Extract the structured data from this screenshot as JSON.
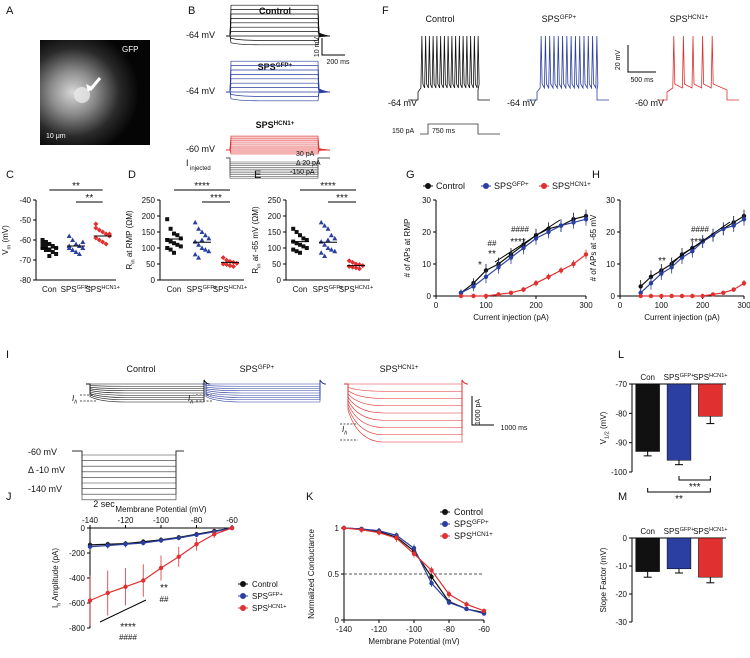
{
  "panels": {
    "A": {
      "letter": "A",
      "gfp": "GFP",
      "scale": "10 μm"
    },
    "B": {
      "letter": "B",
      "rows": [
        {
          "title": "Control",
          "sup": "",
          "v": "-64 mV",
          "color": "#111111"
        },
        {
          "title": "SPS",
          "sup": "GFP+",
          "v": "-64 mV",
          "color": "#2b3fa0"
        },
        {
          "title": "SPS",
          "sup": "HCN1+",
          "v": "-60 mV",
          "color": "#e03030"
        }
      ],
      "scale_y": "10 mV",
      "scale_x": "200 ms",
      "inj": {
        "label": "I",
        "sub": "injected",
        "top": "30 pA",
        "step": "Δ 20 pA",
        "bottom": "-150 pA"
      }
    },
    "F": {
      "letter": "F",
      "rows": [
        {
          "title": "Control",
          "sup": "",
          "v": "-64 mV",
          "color": "#111111"
        },
        {
          "title": "SPS",
          "sup": "GFP+",
          "v": "-64 mV",
          "color": "#2b3fa0"
        },
        {
          "title": "SPS",
          "sup": "HCN1+",
          "v": "-60 mV",
          "color": "#e03030"
        }
      ],
      "scale_y": "20 mV",
      "scale_x": "500 ms",
      "step_amp": "150 pA",
      "step_dur": "750 ms"
    },
    "C": {
      "letter": "C"
    },
    "D": {
      "letter": "D"
    },
    "E": {
      "letter": "E"
    },
    "G": {
      "letter": "G"
    },
    "H": {
      "letter": "H"
    },
    "I": {
      "letter": "I",
      "rows": [
        {
          "title": "Control",
          "sup": ""
        },
        {
          "title": "SPS",
          "sup": "GFP+"
        },
        {
          "title": "SPS",
          "sup": "HCN1+"
        }
      ],
      "ih": "I",
      "ih_sub": "h",
      "volt_top": "-60 mV",
      "volt_step": "Δ -10 mV",
      "volt_bottom": "-140 mV",
      "dur": "2 sec",
      "scale_y": "1000 pA",
      "scale_x": "1000 ms"
    },
    "J": {
      "letter": "J"
    },
    "K": {
      "letter": "K"
    },
    "L": {
      "letter": "L"
    },
    "M": {
      "letter": "M"
    }
  },
  "colors": {
    "control": "#111111",
    "gfp": "#2b3fa0",
    "hcn": "#e03030"
  },
  "chart_data": [
    {
      "id": "C",
      "type": "scatter",
      "ylabel": "V_m (mV)",
      "ylim": [
        -80,
        -40
      ],
      "yticks": [
        -80,
        -70,
        -60,
        -50,
        -40
      ],
      "categories": [
        "Con",
        "SPS^GFP+",
        "SPS^HCN1+"
      ],
      "means": [
        -64,
        -63,
        -58
      ],
      "points": [
        [
          -60,
          -61,
          -62,
          -63,
          -64,
          -64,
          -65,
          -65,
          -66,
          -67,
          -62,
          -63,
          -68
        ],
        [
          -58,
          -60,
          -62,
          -63,
          -64,
          -64,
          -65,
          -66,
          -67,
          -61,
          -63,
          -65
        ],
        [
          -52,
          -55,
          -56,
          -57,
          -58,
          -59,
          -60,
          -61,
          -62,
          -57,
          -54
        ]
      ],
      "sig": [
        {
          "a": 0,
          "b": 2,
          "label": "**"
        },
        {
          "a": 1,
          "b": 2,
          "label": "**"
        }
      ]
    },
    {
      "id": "D",
      "type": "scatter",
      "ylabel": "R_in at RMP (ΩM)",
      "ylim": [
        0,
        250
      ],
      "yticks": [
        0,
        50,
        100,
        150,
        200,
        250
      ],
      "categories": [
        "Con",
        "SPS^GFP+",
        "SPS^HCN1+"
      ],
      "means": [
        128,
        118,
        55
      ],
      "points": [
        [
          190,
          160,
          145,
          140,
          130,
          125,
          120,
          115,
          110,
          105,
          100,
          95,
          85
        ],
        [
          180,
          160,
          150,
          140,
          130,
          120,
          110,
          100,
          95,
          90,
          80,
          70,
          125
        ],
        [
          70,
          62,
          58,
          55,
          52,
          50,
          48,
          45,
          42
        ]
      ],
      "sig": [
        {
          "a": 0,
          "b": 2,
          "label": "****"
        },
        {
          "a": 1,
          "b": 2,
          "label": "***"
        }
      ]
    },
    {
      "id": "E",
      "type": "scatter",
      "ylabel": "R_in at -65 mV (ΩM)",
      "ylim": [
        0,
        250
      ],
      "yticks": [
        0,
        50,
        100,
        150,
        200,
        250
      ],
      "categories": [
        "Con",
        "SPS^GFP+",
        "SPS^HCN1+"
      ],
      "means": [
        120,
        118,
        45
      ],
      "points": [
        [
          160,
          150,
          140,
          130,
          125,
          120,
          115,
          110,
          105,
          100,
          95,
          90,
          85
        ],
        [
          180,
          170,
          160,
          140,
          130,
          120,
          110,
          100,
          95,
          90,
          85,
          75,
          125
        ],
        [
          60,
          55,
          50,
          48,
          45,
          42,
          40,
          38,
          35
        ]
      ],
      "sig": [
        {
          "a": 0,
          "b": 2,
          "label": "****"
        },
        {
          "a": 1,
          "b": 2,
          "label": "***"
        }
      ]
    },
    {
      "id": "G",
      "type": "line",
      "xlabel": "Current injection (pA)",
      "ylabel": "# of APs at RMP",
      "xlim": [
        0,
        300
      ],
      "ylim": [
        0,
        30
      ],
      "xticks": [
        0,
        100,
        200,
        300
      ],
      "yticks": [
        0,
        10,
        20,
        30
      ],
      "legend": [
        "Control",
        "SPS^GFP+",
        "SPS^HCN1+"
      ],
      "series": [
        {
          "name": "Control",
          "x": [
            50,
            75,
            100,
            125,
            150,
            175,
            200,
            225,
            250,
            275,
            300
          ],
          "y": [
            1,
            4,
            8,
            10,
            13,
            16,
            19,
            21,
            22,
            24,
            25
          ],
          "err": [
            1,
            1.5,
            2,
            2,
            2,
            2,
            2,
            2,
            2,
            2,
            2
          ]
        },
        {
          "name": "SPS^GFP+",
          "x": [
            50,
            75,
            100,
            125,
            150,
            175,
            200,
            225,
            250,
            275,
            300
          ],
          "y": [
            1,
            3,
            6,
            9,
            12,
            15,
            18,
            20,
            22,
            23,
            24
          ],
          "err": [
            1,
            1.5,
            2,
            2,
            2,
            2,
            2,
            2,
            2,
            2,
            2
          ]
        },
        {
          "name": "SPS^HCN1+",
          "x": [
            50,
            75,
            100,
            125,
            150,
            175,
            200,
            225,
            250,
            275,
            300
          ],
          "y": [
            0,
            0,
            0,
            0.5,
            1,
            2,
            4,
            6,
            8,
            10,
            13
          ],
          "err": [
            0,
            0,
            0,
            0.3,
            0.5,
            0.8,
            1,
            1,
            1,
            1.2,
            1.5
          ]
        }
      ],
      "annotations": [
        "*",
        "**",
        "##",
        "####",
        "****"
      ]
    },
    {
      "id": "H",
      "type": "line",
      "xlabel": "Current injection (pA)",
      "ylabel": "# of APs at -65 mV",
      "xlim": [
        0,
        300
      ],
      "ylim": [
        0,
        30
      ],
      "xticks": [
        0,
        100,
        200,
        300
      ],
      "yticks": [
        0,
        10,
        20,
        30
      ],
      "series": [
        {
          "name": "Control",
          "x": [
            50,
            75,
            100,
            125,
            150,
            175,
            200,
            225,
            250,
            275,
            300
          ],
          "y": [
            3,
            6,
            8,
            10,
            13,
            15,
            17,
            19,
            21,
            23,
            25
          ],
          "err": [
            2,
            2,
            2,
            2,
            2,
            2,
            2,
            2,
            2,
            2,
            2
          ]
        },
        {
          "name": "SPS^GFP+",
          "x": [
            50,
            75,
            100,
            125,
            150,
            175,
            200,
            225,
            250,
            275,
            300
          ],
          "y": [
            1,
            4,
            7,
            9,
            12,
            14,
            17,
            19,
            21,
            22,
            24
          ],
          "err": [
            1.5,
            2,
            2,
            2,
            2,
            2,
            2,
            2,
            2,
            2,
            2
          ]
        },
        {
          "name": "SPS^HCN1+",
          "x": [
            50,
            75,
            100,
            125,
            150,
            175,
            200,
            225,
            250,
            275,
            300
          ],
          "y": [
            0,
            0,
            0,
            0,
            0,
            0,
            0,
            0.5,
            1,
            2,
            4
          ],
          "err": [
            0,
            0,
            0,
            0,
            0,
            0,
            0,
            0.3,
            0.5,
            0.7,
            1
          ]
        }
      ],
      "annotations": [
        "**",
        "####",
        "****"
      ]
    },
    {
      "id": "J",
      "type": "line",
      "xlabel": "Membrane Potential (mV)",
      "ylabel": "I_h Amplitude (pA)",
      "xlim": [
        -140,
        -60
      ],
      "ylim": [
        -800,
        0
      ],
      "xticks": [
        -140,
        -120,
        -100,
        -80,
        -60
      ],
      "yticks": [
        -800,
        -600,
        -400,
        -200,
        0
      ],
      "legend": [
        "Control",
        "SPS^GFP+",
        "SPS^HCN1+"
      ],
      "series": [
        {
          "name": "Control",
          "x": [
            -140,
            -130,
            -120,
            -110,
            -100,
            -90,
            -80,
            -70,
            -60
          ],
          "y": [
            -135,
            -130,
            -125,
            -110,
            -95,
            -75,
            -50,
            -25,
            0
          ],
          "err": [
            20,
            20,
            20,
            20,
            20,
            15,
            10,
            8,
            5
          ]
        },
        {
          "name": "SPS^GFP+",
          "x": [
            -140,
            -130,
            -120,
            -110,
            -100,
            -90,
            -80,
            -70,
            -60
          ],
          "y": [
            -150,
            -140,
            -130,
            -120,
            -100,
            -80,
            -55,
            -30,
            0
          ],
          "err": [
            25,
            25,
            25,
            20,
            20,
            15,
            10,
            8,
            5
          ]
        },
        {
          "name": "SPS^HCN1+",
          "x": [
            -140,
            -130,
            -120,
            -110,
            -100,
            -90,
            -80,
            -70,
            -60
          ],
          "y": [
            -580,
            -520,
            -470,
            -420,
            -320,
            -230,
            -130,
            -50,
            0
          ],
          "err": [
            200,
            180,
            150,
            130,
            100,
            80,
            50,
            30,
            10
          ]
        }
      ],
      "annotations": [
        "**",
        "##",
        "****",
        "####"
      ]
    },
    {
      "id": "K",
      "type": "line",
      "xlabel": "Membrane Potential (mV)",
      "ylabel": "Normalized Conductance",
      "xlim": [
        -140,
        -60
      ],
      "ylim": [
        0,
        1.0
      ],
      "xticks": [
        -140,
        -120,
        -100,
        -80,
        -60
      ],
      "yticks": [
        0,
        0.5,
        1.0
      ],
      "legend": [
        "Control",
        "SPS^GFP+",
        "SPS^HCN1+"
      ],
      "series": [
        {
          "name": "Control",
          "x": [
            -140,
            -130,
            -120,
            -110,
            -100,
            -90,
            -80,
            -70,
            -60
          ],
          "y": [
            1.0,
            0.99,
            0.96,
            0.9,
            0.75,
            0.47,
            0.2,
            0.12,
            0.08
          ],
          "err": [
            0.02,
            0.02,
            0.03,
            0.03,
            0.04,
            0.04,
            0.03,
            0.02,
            0.02
          ]
        },
        {
          "name": "SPS^GFP+",
          "x": [
            -140,
            -130,
            -120,
            -110,
            -100,
            -90,
            -80,
            -70,
            -60
          ],
          "y": [
            1.0,
            0.99,
            0.97,
            0.92,
            0.78,
            0.4,
            0.19,
            0.12,
            0.07
          ],
          "err": [
            0.02,
            0.02,
            0.03,
            0.03,
            0.04,
            0.04,
            0.03,
            0.02,
            0.02
          ]
        },
        {
          "name": "SPS^HCN1+",
          "x": [
            -140,
            -130,
            -120,
            -110,
            -100,
            -90,
            -80,
            -70,
            -60
          ],
          "y": [
            1.0,
            0.98,
            0.95,
            0.89,
            0.72,
            0.54,
            0.28,
            0.17,
            0.1
          ],
          "err": [
            0.02,
            0.03,
            0.03,
            0.04,
            0.04,
            0.04,
            0.04,
            0.03,
            0.02
          ]
        }
      ]
    },
    {
      "id": "L",
      "type": "bar",
      "ylabel": "V_1/2 (mV)",
      "ylim": [
        -100,
        -70
      ],
      "yticks": [
        -100,
        -90,
        -80,
        -70
      ],
      "categories": [
        "Con",
        "SPS^GFP+",
        "SPS^HCN1+"
      ],
      "values": [
        -93,
        -96,
        -81
      ],
      "err": [
        1.5,
        1.5,
        2.5
      ],
      "sig": [
        {
          "a": 1,
          "b": 2,
          "label": "***"
        },
        {
          "a": 0,
          "b": 2,
          "label": "**"
        }
      ]
    },
    {
      "id": "M",
      "type": "bar",
      "ylabel": "Slope Factor (mV)",
      "ylim": [
        -30,
        0
      ],
      "yticks": [
        -30,
        -20,
        -10,
        0
      ],
      "categories": [
        "Con",
        "SPS^GFP+",
        "SPS^HCN1+"
      ],
      "values": [
        -12,
        -11,
        -14
      ],
      "err": [
        2,
        1.5,
        2
      ]
    }
  ]
}
